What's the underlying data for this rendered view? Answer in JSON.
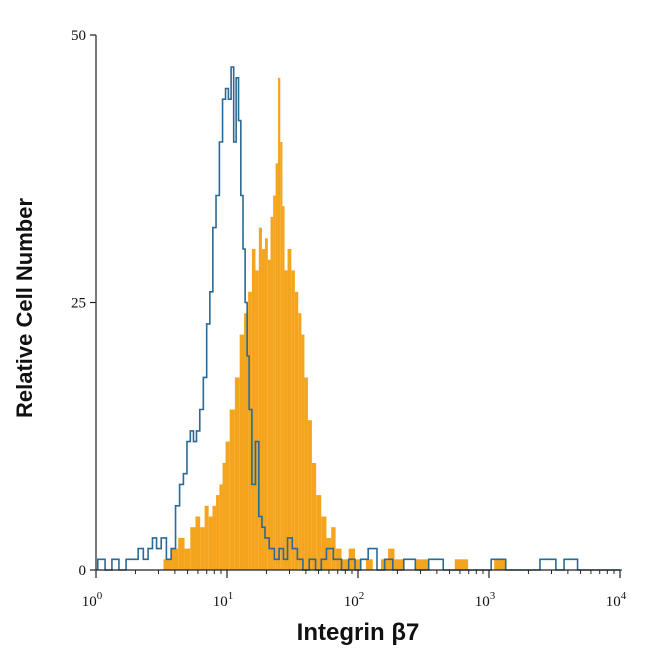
{
  "chart_data": {
    "type": "area",
    "title": "",
    "xlabel": "Integrin β7",
    "ylabel": "Relative Cell Number",
    "x_scale": "log",
    "xlim": [
      1,
      10000
    ],
    "ylim": [
      0,
      50
    ],
    "x_ticks": [
      {
        "value": 1,
        "base": "10",
        "exp": "0"
      },
      {
        "value": 10,
        "base": "10",
        "exp": "1"
      },
      {
        "value": 100,
        "base": "10",
        "exp": "2"
      },
      {
        "value": 1000,
        "base": "10",
        "exp": "3"
      },
      {
        "value": 10000,
        "base": "10",
        "exp": "4"
      }
    ],
    "y_ticks": [
      {
        "value": 0,
        "label": "0"
      },
      {
        "value": 25,
        "label": "25"
      },
      {
        "value": 50,
        "label": "50"
      }
    ],
    "grid": false,
    "legend": "none",
    "series": [
      {
        "style": "step-outline",
        "color": "#2a6a96",
        "x": [
          1.1,
          1.25,
          1.4,
          1.6,
          1.8,
          2.0,
          2.2,
          2.4,
          2.6,
          2.8,
          3.0,
          3.3,
          3.6,
          3.9,
          4.2,
          4.5,
          4.8,
          5.1,
          5.4,
          5.7,
          6.0,
          6.4,
          6.8,
          7.2,
          7.6,
          8.0,
          8.5,
          9.0,
          9.5,
          10,
          10.5,
          11,
          11.5,
          12,
          12.5,
          13,
          13.5,
          14,
          14.5,
          15,
          16,
          17,
          18,
          19,
          20,
          22,
          24,
          26,
          28,
          30,
          33,
          36,
          40,
          45,
          50,
          55,
          60,
          70,
          80,
          90,
          100,
          110,
          130,
          150,
          170,
          200,
          250,
          300,
          400,
          500,
          700,
          900,
          1200,
          1500,
          2000,
          3000,
          3500,
          4000,
          4500,
          5000,
          6000,
          8000,
          9500
        ],
        "y": [
          1,
          0,
          1,
          0,
          1,
          1,
          2,
          1,
          2,
          3,
          2,
          3,
          1,
          2,
          6,
          8,
          9,
          12,
          13,
          12,
          13,
          15,
          18,
          23,
          26,
          32,
          35,
          40,
          44,
          45,
          44,
          47,
          40,
          46,
          42,
          35,
          30,
          25,
          20,
          15,
          8,
          12,
          5,
          4,
          3,
          2,
          1,
          2,
          1,
          3,
          2,
          1,
          0,
          1,
          0,
          1,
          2,
          1,
          0,
          1,
          0,
          1,
          2,
          0,
          1,
          0,
          1,
          0,
          1,
          0,
          0,
          0,
          1,
          0,
          0,
          1,
          0,
          1,
          1,
          0,
          0,
          0,
          0
        ]
      },
      {
        "style": "filled",
        "color": "#f5a51d",
        "x": [
          3.5,
          4.0,
          4.5,
          5.0,
          5.5,
          6.0,
          6.5,
          7.0,
          7.5,
          8.0,
          8.5,
          9.0,
          9.5,
          10,
          11,
          12,
          13,
          14,
          15,
          16,
          17,
          18,
          19,
          20,
          21,
          22,
          23,
          24,
          25,
          26,
          27,
          28,
          30,
          32,
          34,
          36,
          38,
          40,
          43,
          46,
          50,
          55,
          60,
          65,
          70,
          80,
          90,
          100,
          110,
          120,
          140,
          160,
          180,
          200,
          250,
          300,
          400,
          500,
          600,
          800,
          1000,
          1200,
          1500,
          2000
        ],
        "y": [
          1,
          2,
          3,
          2,
          4,
          5,
          4,
          6,
          5,
          6,
          7,
          8,
          10,
          12,
          15,
          18,
          22,
          24,
          26,
          30,
          28,
          32,
          30,
          31,
          29,
          33,
          35,
          38,
          46,
          40,
          34,
          28,
          30,
          28,
          26,
          24,
          22,
          18,
          14,
          10,
          7,
          5,
          3,
          4,
          2,
          1,
          2,
          1,
          0,
          1,
          0,
          1,
          2,
          1,
          0,
          1,
          0,
          0,
          1,
          0,
          0,
          1,
          0,
          0
        ]
      }
    ]
  }
}
